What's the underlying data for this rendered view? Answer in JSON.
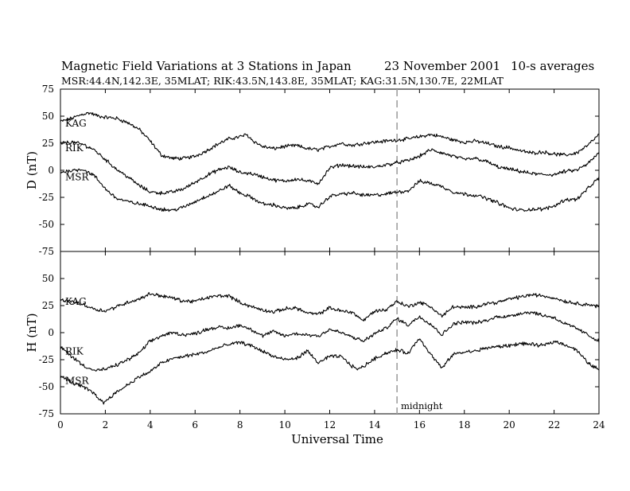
{
  "page": {
    "title": "Magnetic Field Variations at 3 Stations in Japan",
    "date": "23 November 2001",
    "averaging": "10-s averages",
    "subtitle": "MSR:44.4N,142.3E, 35MLAT;   RIK:43.5N,143.8E, 35MLAT;   KAG:31.5N,130.7E, 22MLAT",
    "xlabel": "Universal Time",
    "midnight_label": "midnight"
  },
  "colors": {
    "trace": "#000000",
    "midnight_line": "#a0a0a0",
    "frame": "#000000"
  },
  "chart_data": [
    {
      "type": "line",
      "panel": "top",
      "ylabel": "D (nT)",
      "xlim": [
        0,
        24
      ],
      "ylim": [
        -75,
        75
      ],
      "xticks": [
        0,
        2,
        4,
        6,
        8,
        10,
        12,
        14,
        16,
        18,
        20,
        22,
        24
      ],
      "yticks": [
        -75,
        -50,
        -25,
        0,
        25,
        50,
        75
      ],
      "annotation": {
        "label": "midnight",
        "x": 15
      },
      "series": [
        {
          "name": "KAG",
          "x": [
            0,
            0.5,
            1,
            1.3,
            1.7,
            2,
            2.5,
            3,
            3.5,
            4,
            4.5,
            5,
            5.5,
            6,
            6.5,
            7,
            7.5,
            8,
            8.3,
            8.6,
            9,
            9.5,
            10,
            10.5,
            11,
            11.5,
            12,
            12.5,
            13,
            13.5,
            14,
            14.5,
            15,
            15.5,
            16,
            16.5,
            17,
            17.5,
            18,
            18.5,
            19,
            19.5,
            20,
            20.5,
            21,
            21.5,
            22,
            22.5,
            23,
            23.5,
            24
          ],
          "y": [
            45,
            48,
            52,
            53,
            50,
            49,
            48,
            44,
            38,
            27,
            14,
            11,
            11,
            13,
            18,
            24,
            29,
            31,
            33,
            27,
            22,
            20,
            22,
            23,
            20,
            19,
            22,
            25,
            23,
            25,
            26,
            27,
            28,
            29,
            31,
            33,
            31,
            28,
            26,
            27,
            25,
            22,
            21,
            18,
            16,
            17,
            15,
            14,
            16,
            23,
            33
          ]
        },
        {
          "name": "RIK",
          "x": [
            0,
            0.5,
            1,
            1.5,
            2,
            2.5,
            3,
            3.5,
            4,
            4.5,
            5,
            5.5,
            6,
            6.5,
            7,
            7.5,
            8,
            8.5,
            9,
            9.5,
            10,
            10.5,
            11,
            11.5,
            12,
            12.5,
            13,
            13.5,
            14,
            14.5,
            15,
            15.5,
            16,
            16.5,
            17,
            17.5,
            18,
            18.5,
            19,
            19.5,
            20,
            20.5,
            21,
            21.5,
            22,
            22.5,
            23,
            23.5,
            24
          ],
          "y": [
            25,
            26,
            24,
            19,
            10,
            1,
            -6,
            -14,
            -20,
            -21,
            -20,
            -17,
            -11,
            -5,
            0,
            3,
            -2,
            -3,
            -6,
            -9,
            -10,
            -8,
            -10,
            -12,
            2,
            5,
            4,
            3,
            3,
            5,
            7,
            9,
            13,
            19,
            16,
            13,
            10,
            11,
            8,
            3,
            1,
            -1,
            -3,
            -4,
            -4,
            -1,
            0,
            6,
            16
          ]
        },
        {
          "name": "MSR",
          "x": [
            0,
            0.5,
            1,
            1.5,
            2,
            2.5,
            3,
            3.5,
            4,
            4.5,
            5,
            5.5,
            6,
            6.5,
            7,
            7.5,
            8,
            8.5,
            9,
            9.5,
            10,
            10.5,
            11,
            11.5,
            12,
            12.5,
            13,
            13.5,
            14,
            14.5,
            15,
            15.5,
            16,
            16.5,
            17,
            17.5,
            18,
            18.5,
            19,
            19.5,
            20,
            20.5,
            21,
            21.5,
            22,
            22.5,
            23,
            23.5,
            24
          ],
          "y": [
            -2,
            0,
            1,
            -5,
            -17,
            -26,
            -29,
            -31,
            -33,
            -36,
            -37,
            -34,
            -29,
            -24,
            -20,
            -14,
            -21,
            -25,
            -31,
            -32,
            -35,
            -35,
            -31,
            -34,
            -24,
            -22,
            -21,
            -23,
            -23,
            -22,
            -20,
            -19,
            -10,
            -12,
            -15,
            -20,
            -22,
            -23,
            -26,
            -30,
            -35,
            -37,
            -36,
            -36,
            -33,
            -27,
            -27,
            -17,
            -7
          ]
        }
      ]
    },
    {
      "type": "line",
      "panel": "bottom",
      "ylabel": "H (nT)",
      "xlabel": "Universal Time",
      "xlim": [
        0,
        24
      ],
      "ylim": [
        -75,
        75
      ],
      "xticks": [
        0,
        2,
        4,
        6,
        8,
        10,
        12,
        14,
        16,
        18,
        20,
        22,
        24
      ],
      "yticks": [
        -75,
        -50,
        -25,
        0,
        25,
        50
      ],
      "annotation": {
        "label": "midnight",
        "x": 15
      },
      "series": [
        {
          "name": "KAG",
          "x": [
            0,
            0.5,
            1,
            1.5,
            2,
            2.5,
            3,
            3.5,
            4,
            4.5,
            5,
            5.5,
            6,
            6.5,
            7,
            7.5,
            8,
            8.5,
            9,
            9.5,
            10,
            10.5,
            11,
            11.5,
            12,
            12.5,
            13,
            13.5,
            14,
            14.5,
            15,
            15.5,
            16,
            16.5,
            17,
            17.5,
            18,
            18.5,
            19,
            19.5,
            20,
            20.5,
            21,
            21.5,
            22,
            22.5,
            23,
            23.5,
            24
          ],
          "y": [
            30,
            29,
            26,
            22,
            20,
            24,
            28,
            31,
            36,
            34,
            32,
            29,
            29,
            32,
            34,
            34,
            28,
            24,
            21,
            19,
            22,
            23,
            18,
            17,
            23,
            20,
            19,
            11,
            20,
            21,
            29,
            24,
            28,
            24,
            15,
            24,
            23,
            24,
            27,
            28,
            31,
            33,
            35,
            34,
            32,
            29,
            27,
            26,
            24
          ]
        },
        {
          "name": "RIK",
          "x": [
            0,
            0.5,
            1,
            1.5,
            2,
            2.5,
            3,
            3.5,
            4,
            4.5,
            5,
            5.5,
            6,
            6.5,
            7,
            7.5,
            8,
            8.5,
            9,
            9.5,
            10,
            10.5,
            11,
            11.5,
            12,
            12.5,
            13,
            13.5,
            14,
            14.5,
            15,
            15.5,
            16,
            16.5,
            17,
            17.5,
            18,
            18.5,
            19,
            19.5,
            20,
            20.5,
            21,
            21.5,
            22,
            22.5,
            23,
            23.5,
            24
          ],
          "y": [
            -13,
            -22,
            -30,
            -35,
            -34,
            -30,
            -25,
            -19,
            -8,
            -3,
            0,
            -2,
            -1,
            3,
            5,
            4,
            7,
            3,
            -3,
            1,
            -3,
            -1,
            -2,
            -3,
            3,
            0,
            -4,
            -8,
            -1,
            4,
            13,
            7,
            15,
            8,
            -2,
            8,
            10,
            9,
            11,
            15,
            15,
            18,
            19,
            16,
            14,
            8,
            4,
            -2,
            -8
          ]
        },
        {
          "name": "MSR",
          "x": [
            0,
            0.5,
            1,
            1.5,
            1.9,
            2.3,
            3,
            3.5,
            4,
            4.5,
            5,
            5.5,
            6,
            6.5,
            7,
            7.5,
            8,
            8.5,
            9,
            9.5,
            10,
            10.5,
            11,
            11.5,
            12,
            12.5,
            13,
            13.3,
            14,
            14.5,
            15,
            15.5,
            16,
            16.5,
            17,
            17.5,
            18,
            18.5,
            19,
            19.5,
            20,
            20.5,
            21,
            21.5,
            22,
            22.5,
            23,
            23.5,
            24
          ],
          "y": [
            -40,
            -46,
            -50,
            -56,
            -65,
            -58,
            -48,
            -41,
            -36,
            -28,
            -24,
            -22,
            -20,
            -18,
            -14,
            -11,
            -9,
            -12,
            -17,
            -22,
            -25,
            -24,
            -17,
            -28,
            -22,
            -22,
            -31,
            -34,
            -24,
            -19,
            -16,
            -19,
            -5,
            -20,
            -33,
            -20,
            -18,
            -17,
            -14,
            -13,
            -12,
            -10,
            -11,
            -12,
            -8,
            -11,
            -16,
            -28,
            -34
          ]
        }
      ]
    }
  ]
}
